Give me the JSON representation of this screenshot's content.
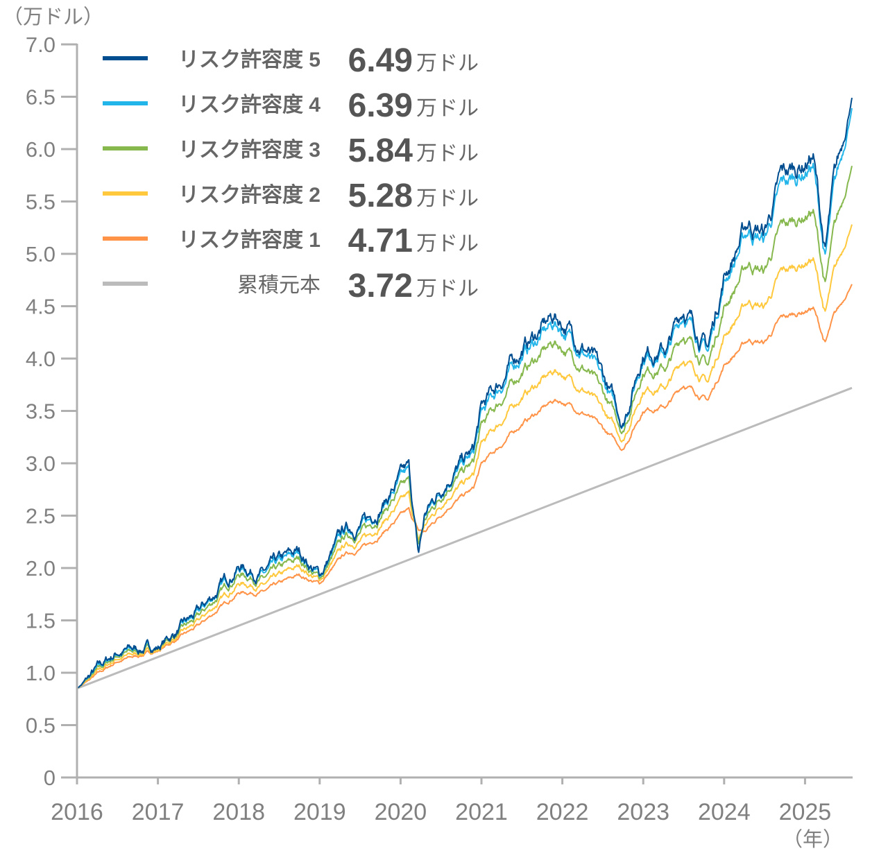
{
  "chart_data": {
    "type": "line",
    "title": "",
    "ylabel": "（万ドル）",
    "xlabel": "（年）",
    "ylim": [
      0,
      7.0
    ],
    "xlim": [
      2016,
      2025.58
    ],
    "y_ticks": [
      "0",
      "0.5",
      "1.0",
      "1.5",
      "2.0",
      "2.5",
      "3.0",
      "3.5",
      "4.0",
      "4.5",
      "5.0",
      "5.5",
      "6.0",
      "6.5",
      "7.0"
    ],
    "x_ticks": [
      "2016",
      "2017",
      "2018",
      "2019",
      "2020",
      "2021",
      "2022",
      "2023",
      "2024",
      "2025"
    ],
    "grid": false,
    "legend_position": "top-left",
    "x": [
      2016.0,
      2016.5,
      2017.0,
      2017.5,
      2018.0,
      2018.3,
      2018.75,
      2019.0,
      2019.3,
      2019.6,
      2020.0,
      2020.1,
      2020.22,
      2020.3,
      2020.6,
      2020.9,
      2021.0,
      2021.5,
      2021.9,
      2022.0,
      2022.3,
      2022.5,
      2022.75,
      2023.0,
      2023.3,
      2023.5,
      2023.8,
      2024.0,
      2024.3,
      2024.5,
      2024.7,
      2025.1,
      2025.25,
      2025.35,
      2025.58
    ],
    "series": [
      {
        "name": "リスク許容度 5",
        "level": "5",
        "final": "6.49",
        "unit": "万ドル",
        "color": "#004d8f",
        "values": [
          0.85,
          1.2,
          1.25,
          1.56,
          2.03,
          1.95,
          2.15,
          1.93,
          2.35,
          2.45,
          2.85,
          2.92,
          2.1,
          2.5,
          2.9,
          3.1,
          3.5,
          4.1,
          4.4,
          4.35,
          4.1,
          3.8,
          3.4,
          4.1,
          4.1,
          4.5,
          4.1,
          4.8,
          5.3,
          5.2,
          5.7,
          5.95,
          5.0,
          5.6,
          6.49
        ]
      },
      {
        "name": "リスク許容度 4",
        "level": "4",
        "final": "6.39",
        "unit": "万ドル",
        "color": "#22b5ea",
        "values": [
          0.85,
          1.19,
          1.25,
          1.55,
          2.01,
          1.93,
          2.13,
          1.92,
          2.33,
          2.43,
          2.82,
          2.89,
          2.12,
          2.49,
          2.87,
          3.07,
          3.45,
          4.04,
          4.33,
          4.28,
          4.05,
          3.76,
          3.38,
          4.05,
          4.06,
          4.44,
          4.06,
          4.74,
          5.22,
          5.13,
          5.61,
          5.86,
          4.94,
          5.52,
          6.39
        ]
      },
      {
        "name": "リスク許容度 3",
        "level": "3",
        "final": "5.84",
        "unit": "万ドル",
        "color": "#86b84e",
        "values": [
          0.85,
          1.17,
          1.24,
          1.52,
          1.95,
          1.89,
          2.08,
          1.9,
          2.28,
          2.38,
          2.74,
          2.8,
          2.2,
          2.45,
          2.81,
          2.99,
          3.34,
          3.88,
          4.15,
          4.11,
          3.9,
          3.65,
          3.32,
          3.91,
          3.92,
          4.25,
          3.93,
          4.5,
          4.91,
          4.83,
          5.23,
          5.42,
          4.69,
          5.15,
          5.84
        ]
      },
      {
        "name": "リスク許容度 2",
        "level": "2",
        "final": "5.28",
        "unit": "万ドル",
        "color": "#ffc83d",
        "values": [
          0.85,
          1.14,
          1.22,
          1.48,
          1.86,
          1.83,
          2.01,
          1.88,
          2.2,
          2.3,
          2.62,
          2.68,
          2.25,
          2.4,
          2.71,
          2.87,
          3.17,
          3.64,
          3.88,
          3.86,
          3.69,
          3.49,
          3.23,
          3.72,
          3.74,
          4.01,
          3.77,
          4.22,
          4.55,
          4.49,
          4.8,
          4.96,
          4.42,
          4.77,
          5.28
        ]
      },
      {
        "name": "リスク許容度 1",
        "level": "1",
        "final": "4.71",
        "unit": "万ドル",
        "color": "#ff9448",
        "values": [
          0.85,
          1.11,
          1.21,
          1.44,
          1.77,
          1.77,
          1.93,
          1.85,
          2.12,
          2.22,
          2.49,
          2.54,
          2.35,
          2.34,
          2.6,
          2.75,
          2.98,
          3.38,
          3.6,
          3.59,
          3.47,
          3.32,
          3.14,
          3.52,
          3.55,
          3.76,
          3.6,
          3.94,
          4.18,
          4.15,
          4.37,
          4.49,
          4.14,
          4.37,
          4.71
        ]
      },
      {
        "name": "累積元本",
        "level": "",
        "final": "3.72",
        "unit": "万ドル",
        "color": "#bbbbbb",
        "x": [
          2016.0,
          2025.58
        ],
        "values": [
          0.85,
          3.72
        ]
      }
    ]
  }
}
